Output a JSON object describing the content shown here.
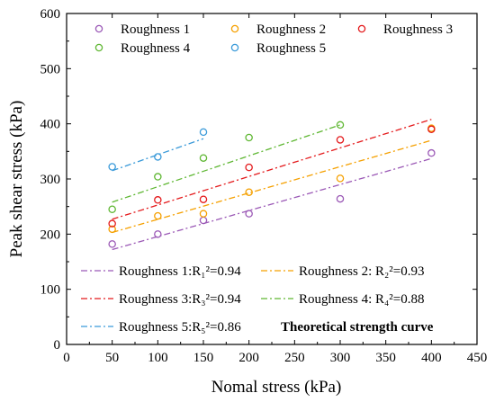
{
  "chart_data": {
    "type": "scatter",
    "xlabel": "Nomal stress (kPa)",
    "ylabel": "Peak shear stress (kPa)",
    "xlim": [
      0,
      450
    ],
    "ylim": [
      0,
      600
    ],
    "xticks": [
      0,
      50,
      100,
      150,
      200,
      250,
      300,
      350,
      400,
      450
    ],
    "yticks": [
      0,
      100,
      200,
      300,
      400,
      500,
      600
    ],
    "grid": false,
    "legend_position": "top",
    "series": [
      {
        "name": "Roughness 1",
        "color": "#9b59b6",
        "points": [
          [
            50,
            182
          ],
          [
            100,
            200
          ],
          [
            150,
            225
          ],
          [
            200,
            237
          ],
          [
            300,
            264
          ],
          [
            400,
            347
          ]
        ]
      },
      {
        "name": "Roughness 2",
        "color": "#f5a000",
        "points": [
          [
            50,
            209
          ],
          [
            100,
            233
          ],
          [
            150,
            237
          ],
          [
            200,
            276
          ],
          [
            300,
            301
          ],
          [
            400,
            392
          ]
        ]
      },
      {
        "name": "Roughness 3",
        "color": "#e41a1c",
        "points": [
          [
            50,
            219
          ],
          [
            100,
            262
          ],
          [
            150,
            263
          ],
          [
            200,
            321
          ],
          [
            300,
            371
          ],
          [
            400,
            390
          ]
        ]
      },
      {
        "name": "Roughness 4",
        "color": "#5fb733",
        "points": [
          [
            50,
            245
          ],
          [
            100,
            304
          ],
          [
            150,
            338
          ],
          [
            200,
            375
          ],
          [
            300,
            398
          ]
        ]
      },
      {
        "name": "Roughness 5",
        "color": "#3a9ad9",
        "points": [
          [
            50,
            322
          ],
          [
            100,
            340
          ],
          [
            150,
            385
          ]
        ]
      }
    ],
    "fit_lines": [
      {
        "label": "Roughness 1:R₁²=0.94",
        "color": "#9b59b6",
        "x": [
          50,
          400
        ],
        "y": [
          172,
          337
        ]
      },
      {
        "label": "Roughness 2: R₂²=0.93",
        "color": "#f5a000",
        "x": [
          50,
          400
        ],
        "y": [
          203,
          370
        ]
      },
      {
        "label": "Roughness 3:R₃²=0.94",
        "color": "#e41a1c",
        "x": [
          50,
          400
        ],
        "y": [
          227,
          408
        ]
      },
      {
        "label": "Roughness 4: R₄²=0.88",
        "color": "#5fb733",
        "x": [
          50,
          300
        ],
        "y": [
          258,
          398
        ]
      },
      {
        "label": "Roughness 5:R₅²=0.86",
        "color": "#3a9ad9",
        "x": [
          50,
          150
        ],
        "y": [
          315,
          373
        ]
      }
    ],
    "annotation": "Theoretical strength curve"
  }
}
